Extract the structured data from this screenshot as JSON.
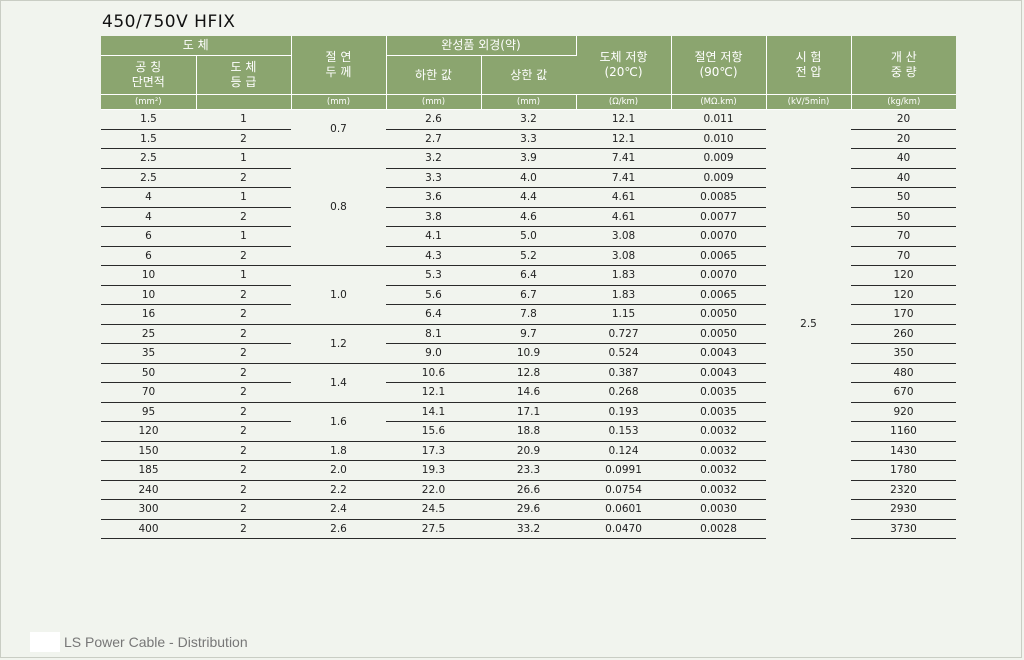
{
  "title": "450/750V HFIX",
  "headers": {
    "conductor": "도        체",
    "nominal_area": "공  칭\n단면적",
    "conductor_class": "도  체\n등  급",
    "insulation_thickness": "절  연\n두  께",
    "outer_diameter": "완성품 외경(약)",
    "od_min": "하한 값",
    "od_max": "상한 값",
    "resistance": "도체 저항\n(20℃)",
    "insulation_resistance": "절연 저항\n(90℃)",
    "test_voltage": "시  험\n전  압",
    "weight": "개  산\n중  량"
  },
  "units": [
    "(mm²)",
    "",
    "(mm)",
    "(mm)",
    "(mm)",
    "(Ω/km)",
    "(MΩ.km)",
    "(kV/5min)",
    "(kg/km)"
  ],
  "test_voltage_value": "2.5",
  "thickness_groups": [
    {
      "value": "0.7",
      "rows": 2
    },
    {
      "value": "0.8",
      "rows": 6
    },
    {
      "value": "1.0",
      "rows": 3
    },
    {
      "value": "1.2",
      "rows": 2
    },
    {
      "value": "1.4",
      "rows": 2
    },
    {
      "value": "1.6",
      "rows": 2
    },
    {
      "value": "1.8",
      "rows": 1
    },
    {
      "value": "2.0",
      "rows": 1
    },
    {
      "value": "2.2",
      "rows": 1
    },
    {
      "value": "2.4",
      "rows": 1
    },
    {
      "value": "2.6",
      "rows": 1
    }
  ],
  "rows": [
    {
      "area": "1.5",
      "cls": "1",
      "od_min": "2.6",
      "od_max": "3.2",
      "res": "12.1",
      "ins": "0.011",
      "wt": "20"
    },
    {
      "area": "1.5",
      "cls": "2",
      "od_min": "2.7",
      "od_max": "3.3",
      "res": "12.1",
      "ins": "0.010",
      "wt": "20"
    },
    {
      "area": "2.5",
      "cls": "1",
      "od_min": "3.2",
      "od_max": "3.9",
      "res": "7.41",
      "ins": "0.009",
      "wt": "40"
    },
    {
      "area": "2.5",
      "cls": "2",
      "od_min": "3.3",
      "od_max": "4.0",
      "res": "7.41",
      "ins": "0.009",
      "wt": "40"
    },
    {
      "area": "4",
      "cls": "1",
      "od_min": "3.6",
      "od_max": "4.4",
      "res": "4.61",
      "ins": "0.0085",
      "wt": "50"
    },
    {
      "area": "4",
      "cls": "2",
      "od_min": "3.8",
      "od_max": "4.6",
      "res": "4.61",
      "ins": "0.0077",
      "wt": "50"
    },
    {
      "area": "6",
      "cls": "1",
      "od_min": "4.1",
      "od_max": "5.0",
      "res": "3.08",
      "ins": "0.0070",
      "wt": "70"
    },
    {
      "area": "6",
      "cls": "2",
      "od_min": "4.3",
      "od_max": "5.2",
      "res": "3.08",
      "ins": "0.0065",
      "wt": "70"
    },
    {
      "area": "10",
      "cls": "1",
      "od_min": "5.3",
      "od_max": "6.4",
      "res": "1.83",
      "ins": "0.0070",
      "wt": "120"
    },
    {
      "area": "10",
      "cls": "2",
      "od_min": "5.6",
      "od_max": "6.7",
      "res": "1.83",
      "ins": "0.0065",
      "wt": "120"
    },
    {
      "area": "16",
      "cls": "2",
      "od_min": "6.4",
      "od_max": "7.8",
      "res": "1.15",
      "ins": "0.0050",
      "wt": "170"
    },
    {
      "area": "25",
      "cls": "2",
      "od_min": "8.1",
      "od_max": "9.7",
      "res": "0.727",
      "ins": "0.0050",
      "wt": "260"
    },
    {
      "area": "35",
      "cls": "2",
      "od_min": "9.0",
      "od_max": "10.9",
      "res": "0.524",
      "ins": "0.0043",
      "wt": "350"
    },
    {
      "area": "50",
      "cls": "2",
      "od_min": "10.6",
      "od_max": "12.8",
      "res": "0.387",
      "ins": "0.0043",
      "wt": "480"
    },
    {
      "area": "70",
      "cls": "2",
      "od_min": "12.1",
      "od_max": "14.6",
      "res": "0.268",
      "ins": "0.0035",
      "wt": "670"
    },
    {
      "area": "95",
      "cls": "2",
      "od_min": "14.1",
      "od_max": "17.1",
      "res": "0.193",
      "ins": "0.0035",
      "wt": "920"
    },
    {
      "area": "120",
      "cls": "2",
      "od_min": "15.6",
      "od_max": "18.8",
      "res": "0.153",
      "ins": "0.0032",
      "wt": "1160"
    },
    {
      "area": "150",
      "cls": "2",
      "od_min": "17.3",
      "od_max": "20.9",
      "res": "0.124",
      "ins": "0.0032",
      "wt": "1430"
    },
    {
      "area": "185",
      "cls": "2",
      "od_min": "19.3",
      "od_max": "23.3",
      "res": "0.0991",
      "ins": "0.0032",
      "wt": "1780"
    },
    {
      "area": "240",
      "cls": "2",
      "od_min": "22.0",
      "od_max": "26.6",
      "res": "0.0754",
      "ins": "0.0032",
      "wt": "2320"
    },
    {
      "area": "300",
      "cls": "2",
      "od_min": "24.5",
      "od_max": "29.6",
      "res": "0.0601",
      "ins": "0.0030",
      "wt": "2930"
    },
    {
      "area": "400",
      "cls": "2",
      "od_min": "27.5",
      "od_max": "33.2",
      "res": "0.0470",
      "ins": "0.0028",
      "wt": "3730"
    }
  ],
  "footer": "LS Power Cable - Distribution"
}
